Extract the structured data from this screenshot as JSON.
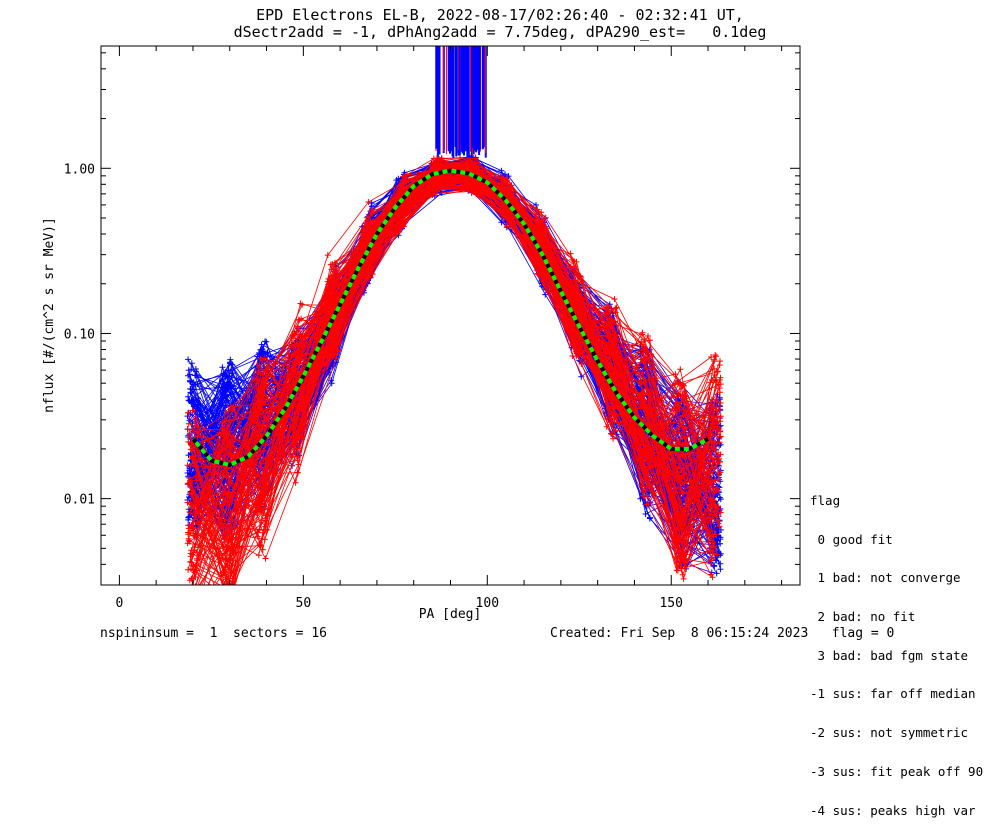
{
  "header": {
    "title": "EPD Electrons EL-B, 2022-08-17/02:26:40 - 02:32:41 UT,",
    "subtitle": "dSectr2add = -1, dPhAng2add = 7.75deg, dPA290_est=   0.1deg"
  },
  "footer": {
    "left": "nspininsum =  1  sectors = 16",
    "right": "Created: Fri Sep  8 06:15:24 2023   flag = 0"
  },
  "legend": {
    "title": "flag",
    "items": [
      " 0 good fit",
      " 1 bad: not converge",
      " 2 bad: no fit",
      " 3 bad: bad fgm state",
      "-1 sus: far off median",
      "-2 sus: not symmetric",
      "-3 sus: fit peak off 90",
      "-4 sus: peaks high var"
    ]
  },
  "colors": {
    "blue_traces": "#0000ff",
    "red_traces": "#ff0000",
    "fit_green": "#00ff00",
    "fit_black": "#000000",
    "axes": "#000000"
  },
  "chart_data": {
    "type": "line",
    "xlabel": "PA [deg]",
    "ylabel": "nflux [#/(cm^2 s sr MeV)]",
    "xlim": [
      -5,
      185
    ],
    "ylim": [
      0.003,
      5.5
    ],
    "yscale": "log",
    "x_ticks": [
      0,
      50,
      100,
      150
    ],
    "x_tick_labels": [
      "0",
      "50",
      "100",
      "150"
    ],
    "y_ticks": [
      0.01,
      0.1,
      1.0
    ],
    "y_tick_labels": [
      "0.01",
      "0.10",
      "1.00"
    ],
    "grid": false,
    "series": [
      {
        "style": "dashed-fit",
        "x": [
          20,
          25,
          30,
          35,
          40,
          45,
          50,
          55,
          60,
          65,
          70,
          75,
          80,
          85,
          90,
          95,
          100,
          105,
          110,
          115,
          120,
          125,
          130,
          135,
          140,
          145,
          150,
          155,
          160
        ],
        "y": [
          0.023,
          0.017,
          0.016,
          0.018,
          0.024,
          0.035,
          0.055,
          0.09,
          0.15,
          0.25,
          0.4,
          0.58,
          0.78,
          0.92,
          0.97,
          0.93,
          0.82,
          0.64,
          0.46,
          0.3,
          0.18,
          0.11,
          0.068,
          0.044,
          0.031,
          0.024,
          0.02,
          0.02,
          0.023
        ]
      },
      {
        "style": "blue-traces",
        "x": [
          20,
          25,
          30,
          40,
          50,
          60,
          70,
          80,
          90,
          95,
          100,
          110,
          120,
          130,
          140,
          150,
          155
        ],
        "y": [
          0.02,
          0.015,
          0.02,
          0.03,
          0.05,
          0.14,
          0.42,
          0.8,
          0.96,
          0.95,
          0.83,
          0.5,
          0.18,
          0.08,
          0.035,
          0.015,
          0.012
        ]
      },
      {
        "style": "red-traces",
        "x": [
          22,
          28,
          35,
          45,
          55,
          65,
          75,
          85,
          92,
          100,
          110,
          120,
          130,
          140,
          150,
          158,
          162
        ],
        "y": [
          0.008,
          0.008,
          0.012,
          0.03,
          0.1,
          0.28,
          0.55,
          0.9,
          0.95,
          0.85,
          0.5,
          0.2,
          0.08,
          0.04,
          0.015,
          0.01,
          0.02
        ]
      }
    ]
  }
}
